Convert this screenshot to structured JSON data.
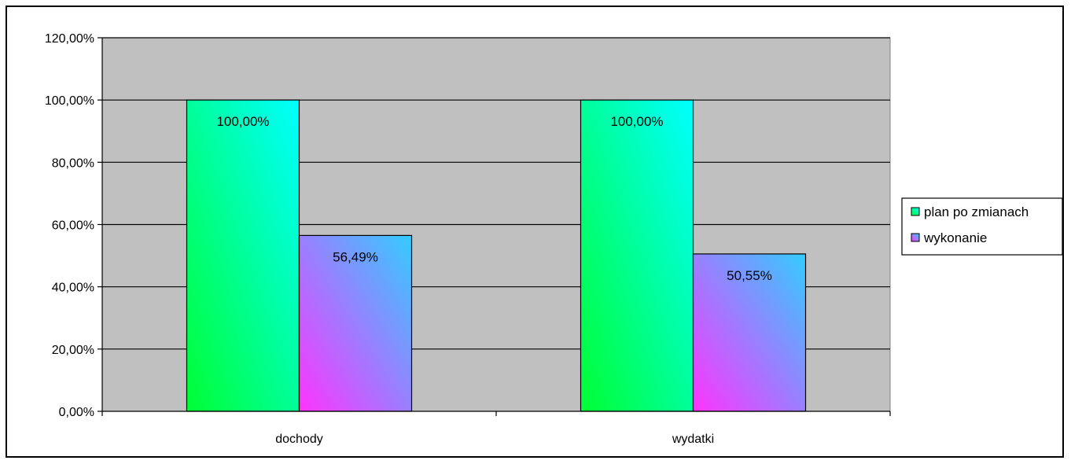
{
  "chart_data": {
    "type": "bar",
    "categories": [
      "dochody",
      "wydatki"
    ],
    "series": [
      {
        "name": "plan po zmianach",
        "values": [
          100.0,
          100.0
        ],
        "labels": [
          "100,00%",
          "100,00%"
        ],
        "gradient": [
          "#00ff33",
          "#00ffff"
        ]
      },
      {
        "name": "wykonanie",
        "values": [
          56.49,
          50.55
        ],
        "labels": [
          "56,49%",
          "50,55%"
        ],
        "gradient": [
          "#ff33ff",
          "#33ccff"
        ]
      }
    ],
    "ylim": [
      0,
      120
    ],
    "yticks": [
      0,
      20,
      40,
      60,
      80,
      100,
      120
    ],
    "ytick_labels": [
      "0,00%",
      "20,00%",
      "40,00%",
      "60,00%",
      "80,00%",
      "100,00%",
      "120,00%"
    ],
    "title": "",
    "xlabel": "",
    "ylabel": "",
    "grid": true,
    "legend_position": "right",
    "plot_background": "#c0c0c0"
  }
}
